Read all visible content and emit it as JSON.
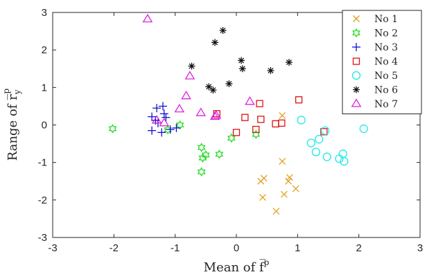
{
  "chart_data": {
    "type": "scatter",
    "title": "",
    "xlabel": "Mean of  f̅",
    "xlabel_sup": "p",
    "ylabel": "Range of  r̅",
    "ylabel_sub": "y",
    "ylabel_sup": "p",
    "xlim": [
      -3,
      3
    ],
    "ylim": [
      -3,
      3
    ],
    "xticks": [
      -3,
      -2,
      -1,
      0,
      1,
      2,
      3
    ],
    "yticks": [
      -3,
      -2,
      -1,
      0,
      1,
      2,
      3
    ],
    "xtick_labels": [
      "-3",
      "-2",
      "-1",
      "0",
      "1",
      "2",
      "3"
    ],
    "ytick_labels": [
      "-3",
      "-2",
      "-1",
      "0",
      "1",
      "2",
      "3"
    ],
    "grid": false,
    "legend_position": "top-right",
    "series": [
      {
        "name": "No 1",
        "marker": "x",
        "color": "#E0A020",
        "points": [
          [
            0.4,
            -1.5
          ],
          [
            0.45,
            -1.42
          ],
          [
            0.75,
            -0.97
          ],
          [
            0.78,
            -1.85
          ],
          [
            0.85,
            -1.5
          ],
          [
            0.87,
            -1.4
          ],
          [
            0.97,
            -1.7
          ],
          [
            0.43,
            -1.93
          ],
          [
            0.65,
            -2.3
          ],
          [
            0.75,
            0.25
          ]
        ]
      },
      {
        "name": "No 2",
        "marker": "hexagram",
        "color": "#22DD22",
        "points": [
          [
            -2.02,
            -0.1
          ],
          [
            -1.12,
            -0.13
          ],
          [
            -0.92,
            0.0
          ],
          [
            -0.57,
            -0.6
          ],
          [
            -0.55,
            -0.88
          ],
          [
            -0.5,
            -0.8
          ],
          [
            -0.57,
            -1.25
          ],
          [
            -0.28,
            -0.78
          ],
          [
            -0.08,
            -0.35
          ],
          [
            0.32,
            -0.25
          ]
        ]
      },
      {
        "name": "No 3",
        "marker": "plus",
        "color": "#1010CC",
        "points": [
          [
            -1.38,
            0.22
          ],
          [
            -1.3,
            0.45
          ],
          [
            -1.2,
            0.5
          ],
          [
            -1.28,
            0.05
          ],
          [
            -1.15,
            0.2
          ],
          [
            -1.38,
            -0.15
          ],
          [
            -1.22,
            -0.2
          ],
          [
            -1.08,
            -0.12
          ],
          [
            -1.18,
            0.3
          ],
          [
            -1.32,
            0.12
          ],
          [
            -0.98,
            -0.08
          ]
        ]
      },
      {
        "name": "No 4",
        "marker": "square",
        "color": "#DD1111",
        "points": [
          [
            -0.32,
            0.3
          ],
          [
            0.0,
            -0.2
          ],
          [
            0.14,
            0.2
          ],
          [
            0.32,
            -0.12
          ],
          [
            0.38,
            0.57
          ],
          [
            0.4,
            0.15
          ],
          [
            0.64,
            0.03
          ],
          [
            0.74,
            0.05
          ],
          [
            1.02,
            0.67
          ],
          [
            1.43,
            -0.18
          ]
        ]
      },
      {
        "name": "No 5",
        "marker": "circle",
        "color": "#22E8E8",
        "points": [
          [
            1.06,
            0.13
          ],
          [
            1.22,
            -0.48
          ],
          [
            1.3,
            -0.72
          ],
          [
            1.35,
            -0.38
          ],
          [
            1.45,
            -0.15
          ],
          [
            1.48,
            -0.85
          ],
          [
            1.68,
            -0.9
          ],
          [
            1.74,
            -0.77
          ],
          [
            1.76,
            -0.97
          ],
          [
            2.08,
            -0.1
          ]
        ]
      },
      {
        "name": "No 6",
        "marker": "asterisk",
        "color": "#111111",
        "points": [
          [
            -0.73,
            1.57
          ],
          [
            -0.45,
            1.02
          ],
          [
            -0.38,
            0.93
          ],
          [
            -0.35,
            2.2
          ],
          [
            -0.22,
            2.52
          ],
          [
            -0.12,
            1.1
          ],
          [
            0.08,
            1.72
          ],
          [
            0.1,
            1.5
          ],
          [
            0.56,
            1.45
          ],
          [
            0.86,
            1.67
          ]
        ]
      },
      {
        "name": "No 7",
        "marker": "triangle",
        "color": "#DD22DD",
        "points": [
          [
            -1.45,
            2.82
          ],
          [
            -1.3,
            0.12
          ],
          [
            -1.18,
            0.05
          ],
          [
            -0.93,
            0.42
          ],
          [
            -0.82,
            0.77
          ],
          [
            -0.76,
            1.3
          ],
          [
            -0.58,
            0.32
          ],
          [
            -0.35,
            0.22
          ],
          [
            -0.33,
            0.25
          ],
          [
            0.22,
            0.62
          ]
        ]
      }
    ]
  }
}
